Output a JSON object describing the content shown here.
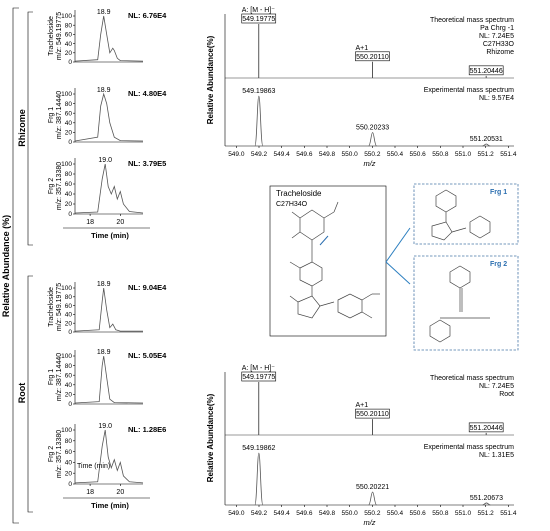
{
  "figure": {
    "left_ylabel": "Relative Abundance (%)",
    "rhizome_label": "Rhizome",
    "root_label": "Root",
    "time_in_plot": "Time (min)"
  },
  "chart_data": [
    {
      "type": "line",
      "id": "chromatogram-rhizome-tracheloside",
      "side_label": [
        "Tracheloside",
        "m/z: 549.19775"
      ],
      "peak_label": "18.9",
      "nl": "NL: 6.76E4",
      "yticks": [
        "0",
        "20",
        "40",
        "60",
        "80",
        "100"
      ],
      "ylim": [
        0,
        100
      ],
      "x": [
        17.0,
        18.5,
        18.7,
        18.9,
        19.1,
        19.3,
        19.5,
        19.6,
        19.8,
        20.0,
        21.5
      ],
      "y": [
        2,
        5,
        60,
        100,
        60,
        20,
        30,
        25,
        8,
        3,
        2
      ]
    },
    {
      "type": "line",
      "id": "chromatogram-rhizome-frg1",
      "side_label": [
        "Frg 1",
        "m/z: 387.14440"
      ],
      "peak_label": "18.9",
      "nl": "NL: 4.80E4",
      "yticks": [
        "0",
        "20",
        "40",
        "60",
        "80",
        "100"
      ],
      "ylim": [
        0,
        100
      ],
      "x": [
        17.0,
        18.5,
        18.7,
        18.9,
        19.1,
        19.3,
        19.6,
        20.0,
        21.5
      ],
      "y": [
        2,
        10,
        75,
        100,
        80,
        40,
        10,
        3,
        2
      ]
    },
    {
      "type": "line",
      "id": "chromatogram-rhizome-frg2",
      "side_label": [
        "Frg 2",
        "m/z: 357.13380"
      ],
      "peak_label": "19.0",
      "nl": "NL: 3.79E5",
      "yticks": [
        "0",
        "20",
        "40",
        "60",
        "80",
        "100"
      ],
      "ylim": [
        0,
        100
      ],
      "x": [
        17.0,
        18.5,
        18.8,
        19.0,
        19.2,
        19.4,
        19.6,
        19.8,
        20.0,
        20.2,
        20.6,
        21.5
      ],
      "y": [
        2,
        4,
        70,
        100,
        55,
        40,
        55,
        30,
        45,
        20,
        5,
        2
      ],
      "xlabel": "Time (min)",
      "xticks": [
        "18",
        "20"
      ]
    },
    {
      "type": "line",
      "id": "chromatogram-root-tracheloside",
      "side_label": [
        "Tracheloside",
        "m/z: 549.19775"
      ],
      "peak_label": "18.9",
      "nl": "NL: 9.04E4",
      "yticks": [
        "0",
        "20",
        "40",
        "60",
        "80",
        "100"
      ],
      "ylim": [
        0,
        100
      ],
      "x": [
        17.0,
        18.6,
        18.8,
        18.9,
        19.1,
        19.3,
        19.5,
        19.7,
        20.0,
        21.5
      ],
      "y": [
        2,
        5,
        70,
        100,
        50,
        10,
        18,
        5,
        2,
        2
      ]
    },
    {
      "type": "line",
      "id": "chromatogram-root-frg1",
      "side_label": [
        "Frg 1",
        "m/z: 387.14440"
      ],
      "peak_label": "18.9",
      "nl": "NL: 5.05E4",
      "yticks": [
        "0",
        "20",
        "40",
        "60",
        "80",
        "100"
      ],
      "ylim": [
        0,
        100
      ],
      "x": [
        17.0,
        18.6,
        18.8,
        18.9,
        19.1,
        19.3,
        19.6,
        21.5
      ],
      "y": [
        2,
        5,
        80,
        100,
        55,
        10,
        3,
        2
      ]
    },
    {
      "type": "line",
      "id": "chromatogram-root-frg2",
      "side_label": [
        "Frg 2",
        "m/z: 357.13380"
      ],
      "peak_label": "19.0",
      "nl": "NL: 1.28E6",
      "yticks": [
        "0",
        "20",
        "40",
        "60",
        "80",
        "100"
      ],
      "ylim": [
        0,
        100
      ],
      "x": [
        17.0,
        18.5,
        18.8,
        19.0,
        19.2,
        19.4,
        19.6,
        19.8,
        20.0,
        20.2,
        20.6,
        21.5
      ],
      "y": [
        2,
        4,
        70,
        100,
        50,
        30,
        45,
        25,
        40,
        15,
        4,
        2
      ],
      "xlabel": "Time (min)",
      "xticks": [
        "18",
        "20"
      ]
    },
    {
      "type": "bar",
      "id": "mass-spectrum-rhizome",
      "xlabel": "m/z",
      "ylabel": "Relative Abundance(%)",
      "xlim": [
        548.9,
        551.45
      ],
      "xticks": [
        "549.0",
        "549.2",
        "549.4",
        "549.6",
        "549.8",
        "550.0",
        "550.2",
        "550.4",
        "550.6",
        "550.8",
        "551.0",
        "551.2",
        "551.4"
      ],
      "theoretical": {
        "label": "Theoretical mass spectrum",
        "info": [
          "Pa Chrg -1",
          "NL: 7.24E5",
          "C27H33O",
          "Rhizome"
        ],
        "sticks": [
          {
            "mz": 549.19775,
            "rel": 100,
            "label": "549.19775",
            "tag": "A: [M - H]⁻"
          },
          {
            "mz": 550.2011,
            "rel": 30,
            "label": "550.20110",
            "tag": "A+1"
          },
          {
            "mz": 551.20446,
            "rel": 4,
            "label": "551.20446",
            "tag": ""
          }
        ]
      },
      "experimental": {
        "label": "Experimental mass spectrum",
        "info": [
          "NL: 9.57E4"
        ],
        "peaks": [
          {
            "mz": 549.19863,
            "rel": 100,
            "label": "549.19863"
          },
          {
            "mz": 550.20233,
            "rel": 27,
            "label": "550.20233"
          },
          {
            "mz": 551.20531,
            "rel": 4,
            "label": "551.20531"
          }
        ]
      }
    },
    {
      "type": "bar",
      "id": "mass-spectrum-root",
      "xlabel": "m/z",
      "ylabel": "Relative Abundance(%)",
      "xlim": [
        548.9,
        551.45
      ],
      "xticks": [
        "549.0",
        "549.2",
        "549.4",
        "549.6",
        "549.8",
        "550.0",
        "550.2",
        "550.4",
        "550.6",
        "550.8",
        "551.0",
        "551.2",
        "551.4"
      ],
      "theoretical": {
        "label": "Theoretical mass spectrum",
        "info": [
          "NL: 7.24E5",
          "Root"
        ],
        "sticks": [
          {
            "mz": 549.19775,
            "rel": 100,
            "label": "549.19775",
            "tag": "A: [M - H]⁻"
          },
          {
            "mz": 550.2011,
            "rel": 30,
            "label": "550.20110",
            "tag": "A+1"
          },
          {
            "mz": 551.20446,
            "rel": 4,
            "label": "551.20446",
            "tag": ""
          }
        ]
      },
      "experimental": {
        "label": "Experimental mass spectrum",
        "info": [
          "NL: 1.31E5"
        ],
        "peaks": [
          {
            "mz": 549.19862,
            "rel": 100,
            "label": "549.19862"
          },
          {
            "mz": 550.20221,
            "rel": 25,
            "label": "550.20221"
          },
          {
            "mz": 551.20673,
            "rel": 4,
            "label": "551.20673"
          }
        ]
      }
    }
  ],
  "structure": {
    "name": "Tracheloside",
    "formula": "C27H34O",
    "frg1_label": "Frg 1",
    "frg2_label": "Frg 2"
  }
}
